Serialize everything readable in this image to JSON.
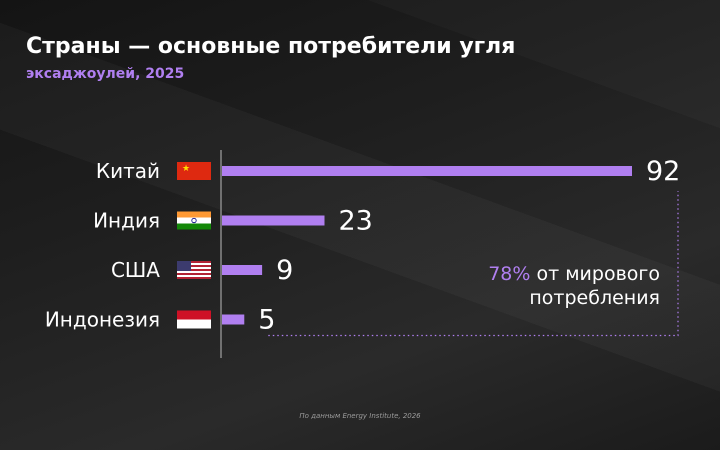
{
  "header": {
    "title": "Страны — основные потребители угля",
    "subtitle": "эксаджоулей, 2025"
  },
  "callout": {
    "percent": "78%",
    "text_line1": "от мирового",
    "text_line2": "потребления"
  },
  "source": "По данным Energy Institute, 2026",
  "colors": {
    "accent": "#b07ff0",
    "bar": "#b07ff0",
    "text": "#ffffff"
  },
  "chart_data": {
    "type": "bar",
    "orientation": "horizontal",
    "categories": [
      "Китай",
      "Индия",
      "США",
      "Индонезия"
    ],
    "flags": [
      "china-flag-icon",
      "india-flag-icon",
      "usa-flag-icon",
      "indonesia-flag-icon"
    ],
    "values": [
      92,
      23,
      9,
      5
    ],
    "title": "Страны — основные потребители угля",
    "subtitle": "эксаджоулей, 2025",
    "xlim": [
      0,
      100
    ],
    "grid": false,
    "legend": "none"
  }
}
